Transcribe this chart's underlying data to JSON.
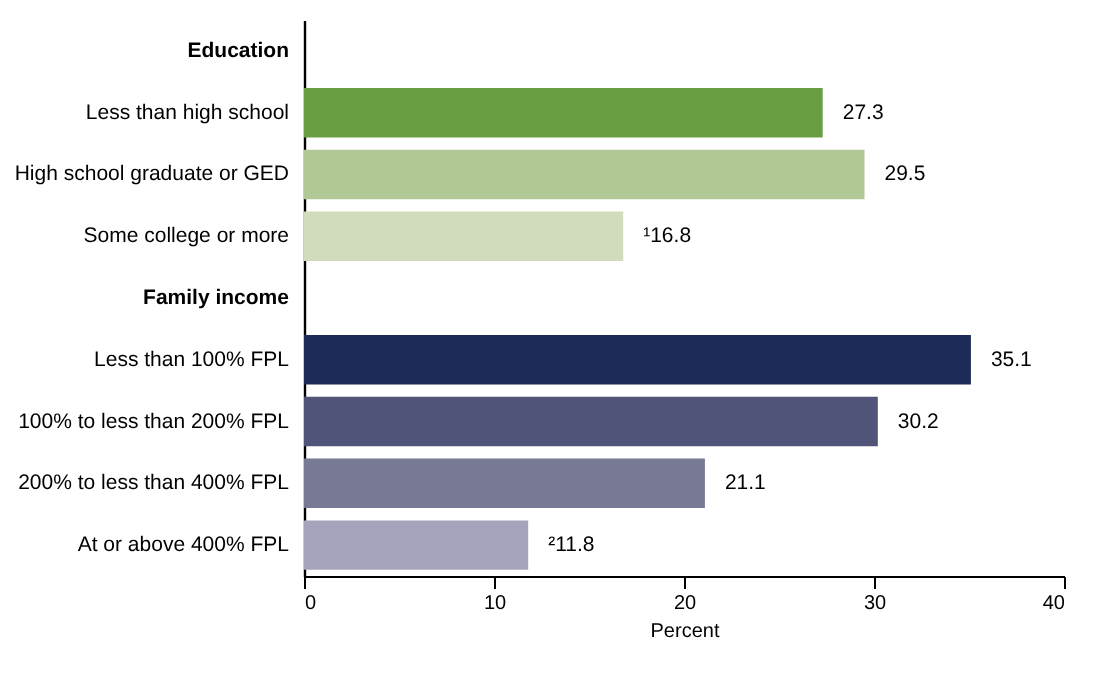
{
  "chart_data": {
    "type": "bar",
    "orientation": "horizontal",
    "xlabel": "Percent",
    "categories": [
      "Education",
      "Less than high school",
      "High school graduate or GED",
      "Some college or more",
      "Family income",
      "Less than 100% FPL",
      "100% to less than 200% FPL",
      "200% to less than 400% FPL",
      "At or above 400% FPL"
    ],
    "values": [
      null,
      27.3,
      29.5,
      16.8,
      null,
      35.1,
      30.2,
      21.1,
      11.8
    ],
    "colors": [
      null,
      "#6a9e42",
      "#b1c794",
      "#d1dcbd",
      null,
      "#1c2b57",
      "#505478",
      "#777995",
      "#a6a4bc"
    ],
    "value_labels": [
      null,
      "27.3",
      "29.5",
      "¹16.8",
      null,
      "35.1",
      "30.2",
      "21.1",
      "²11.8"
    ],
    "xlim": [
      0,
      40
    ],
    "xticks": [
      0,
      10,
      20,
      30,
      40
    ]
  }
}
